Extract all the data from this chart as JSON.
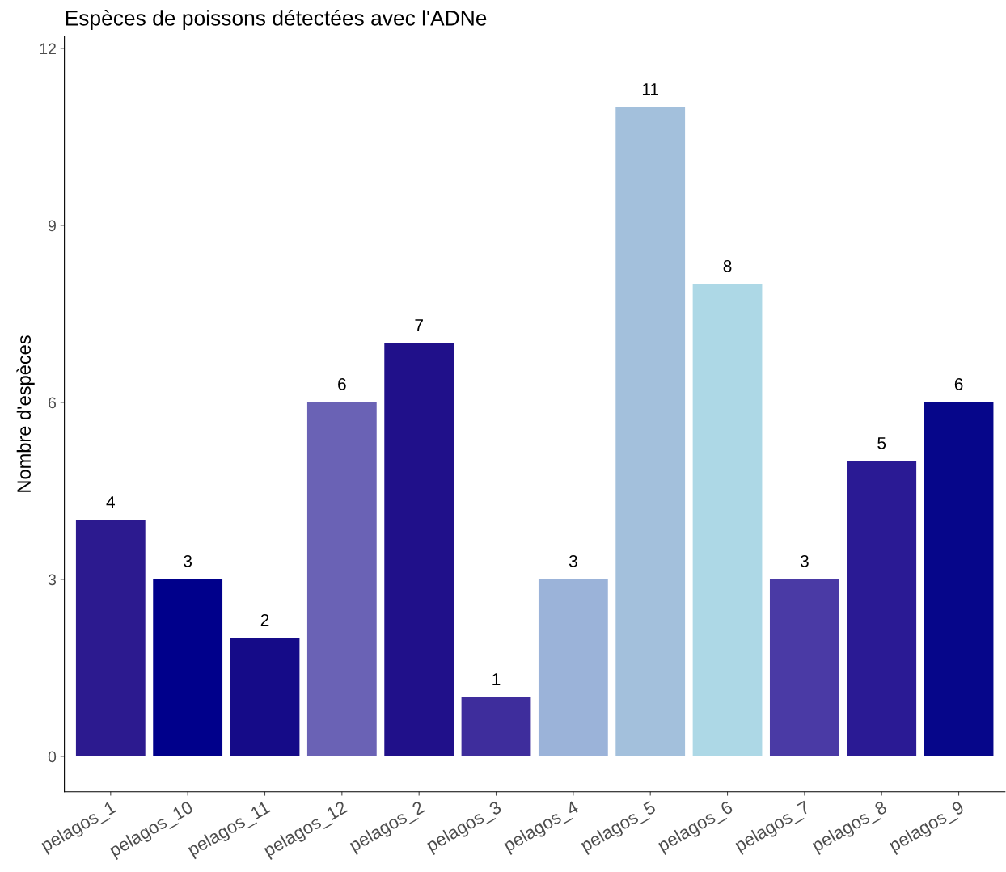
{
  "chart_data": {
    "type": "bar",
    "title": "Espèces de poissons détectées avec l'ADNe",
    "ylabel": "Nombre d'espèces",
    "categories": [
      "pelagos_1",
      "pelagos_10",
      "pelagos_11",
      "pelagos_12",
      "pelagos_2",
      "pelagos_3",
      "pelagos_4",
      "pelagos_5",
      "pelagos_6",
      "pelagos_7",
      "pelagos_8",
      "pelagos_9"
    ],
    "values": [
      4,
      3,
      2,
      6,
      7,
      1,
      3,
      11,
      8,
      3,
      5,
      6
    ],
    "colors": [
      "#2c1a8f",
      "#00008b",
      "#150b88",
      "#6a62b5",
      "#20108a",
      "#3e2d9c",
      "#9bb3d9",
      "#a3c0dc",
      "#add8e6",
      "#4a3aa5",
      "#2a1a94",
      "#06068a"
    ],
    "ylim": [
      -0.6,
      12.2
    ],
    "yticks": [
      0,
      3,
      6,
      9,
      12
    ],
    "grid": false,
    "legend": false,
    "data_labels": true
  }
}
